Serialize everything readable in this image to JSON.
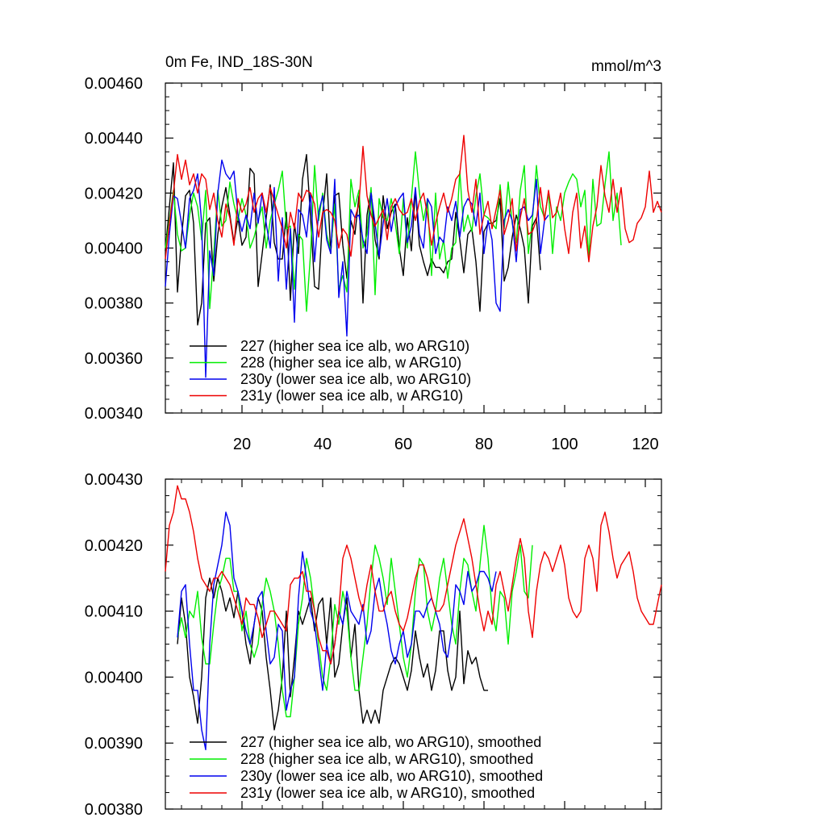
{
  "colors": {
    "s227": "#000000",
    "s228": "#00ee00",
    "s230": "#0000ee",
    "s231": "#ee0000"
  },
  "chart_data": [
    {
      "type": "line",
      "title": "0m Fe, IND_18S-30N",
      "units": "mmol/m^3",
      "ylim": [
        0.0034,
        0.0046
      ],
      "xlim": [
        1,
        124
      ],
      "yticks": [
        "0.00340",
        "0.00360",
        "0.00380",
        "0.00400",
        "0.00420",
        "0.00440",
        "0.00460"
      ],
      "yvals": [
        0.0034,
        0.0036,
        0.0038,
        0.004,
        0.0042,
        0.0044,
        0.0046
      ],
      "xticks": [
        20,
        40,
        60,
        80,
        100,
        120
      ],
      "legend_position": "bottom-left",
      "series": [
        {
          "name": "227 (higher sea ice alb, wo ARG10)",
          "color": "#000000",
          "x_start": 1,
          "values": [
            0.00399,
            0.00415,
            0.00431,
            0.00384,
            0.00404,
            0.00419,
            0.00421,
            0.00409,
            0.00372,
            0.0038,
            0.00409,
            0.00411,
            0.00388,
            0.00405,
            0.00415,
            0.00422,
            0.00412,
            0.00402,
            0.00411,
            0.00401,
            0.00404,
            0.00429,
            0.00427,
            0.00386,
            0.00398,
            0.00411,
            0.00423,
            0.00402,
            0.00396,
            0.00396,
            0.00413,
            0.00381,
            0.00409,
            0.00398,
            0.00425,
            0.00434,
            0.00411,
            0.00386,
            0.00385,
            0.00412,
            0.00427,
            0.00398,
            0.00419,
            0.0042,
            0.00401,
            0.00389,
            0.0041,
            0.00405,
            0.00419,
            0.0038,
            0.00412,
            0.00421,
            0.00403,
            0.00396,
            0.00419,
            0.00407,
            0.00413,
            0.00416,
            0.004,
            0.0039,
            0.00411,
            0.00399,
            0.00421,
            0.00401,
            0.00395,
            0.0039,
            0.00396,
            0.00393,
            0.00393,
            0.00391,
            0.00395,
            0.00396,
            0.00413,
            0.00403,
            0.00391,
            0.00405,
            0.00407,
            0.00395,
            0.00377,
            0.00406,
            0.00409,
            0.00409,
            0.0041,
            0.00418,
            0.00388,
            0.00393,
            0.00404,
            0.00412,
            0.00407,
            0.004,
            0.0038,
            0.00408,
            0.00411,
            0.00392
          ]
        },
        {
          "name": "228 (higher sea ice alb, w ARG10)",
          "color": "#00ee00",
          "x_start": 1,
          "values": [
            0.004,
            0.0041,
            0.00421,
            0.00405,
            0.00399,
            0.004,
            0.00412,
            0.0042,
            0.00415,
            0.00403,
            0.00421,
            0.00378,
            0.00398,
            0.00421,
            0.00408,
            0.0041,
            0.00424,
            0.00416,
            0.0041,
            0.00418,
            0.00412,
            0.004,
            0.00404,
            0.0041,
            0.00415,
            0.004,
            0.0041,
            0.00416,
            0.00421,
            0.00428,
            0.00407,
            0.00408,
            0.00385,
            0.00405,
            0.00403,
            0.00377,
            0.00398,
            0.0043,
            0.0041,
            0.0042,
            0.00405,
            0.00399,
            0.00416,
            0.00385,
            0.0039,
            0.00384,
            0.00425,
            0.00415,
            0.00421,
            0.004,
            0.00405,
            0.00422,
            0.00383,
            0.00418,
            0.00411,
            0.0041,
            0.00418,
            0.00409,
            0.00398,
            0.00418,
            0.004,
            0.00418,
            0.00435,
            0.0042,
            0.0041,
            0.00418,
            0.0039,
            0.0042,
            0.00396,
            0.00403,
            0.00389,
            0.004,
            0.00402,
            0.00428,
            0.00406,
            0.00412,
            0.00406,
            0.00419,
            0.00427,
            0.00412,
            0.00411,
            0.00409,
            0.00407,
            0.00423,
            0.00407,
            0.00424,
            0.00409,
            0.00402,
            0.00421,
            0.0043,
            0.00398,
            0.0041,
            0.0043,
            0.00415,
            0.00411,
            0.0042,
            0.00398,
            0.00415,
            0.0041,
            0.0042,
            0.00424,
            0.00427,
            0.00425,
            0.00415,
            0.00421,
            0.00396,
            0.00425,
            0.00408,
            0.00409,
            0.00423,
            0.00435,
            0.0041,
            0.0042,
            0.00401
          ]
        },
        {
          "name": "230y (lower sea ice alb, wo ARG10)",
          "color": "#0000ee",
          "x_start": 1,
          "values": [
            0.00386,
            0.00405,
            0.00419,
            0.00418,
            0.00409,
            0.004,
            0.00418,
            0.00421,
            0.00427,
            0.00409,
            0.00353,
            0.00399,
            0.0039,
            0.0042,
            0.00432,
            0.00427,
            0.00425,
            0.00428,
            0.00412,
            0.00406,
            0.00412,
            0.00407,
            0.0042,
            0.00409,
            0.0042,
            0.00409,
            0.004,
            0.00422,
            0.00388,
            0.00411,
            0.00385,
            0.00407,
            0.00373,
            0.00414,
            0.00412,
            0.00404,
            0.0042,
            0.00395,
            0.00413,
            0.00419,
            0.00403,
            0.00398,
            0.00425,
            0.00382,
            0.00395,
            0.00368,
            0.00414,
            0.00411,
            0.00412,
            0.00403,
            0.00398,
            0.0042,
            0.00409,
            0.00397,
            0.00409,
            0.00418,
            0.00406,
            0.00415,
            0.00418,
            0.0042,
            0.00402,
            0.00408,
            0.00422,
            0.00405,
            0.004,
            0.00418,
            0.00415,
            0.00398,
            0.00404,
            0.00402,
            0.00415,
            0.0041,
            0.00417,
            0.00404,
            0.00415,
            0.00418,
            0.00416,
            0.00408,
            0.0042,
            0.00398,
            0.0041,
            0.00403,
            0.0038,
            0.00377,
            0.0041,
            0.00414,
            0.0041,
            0.00395,
            0.00414,
            0.00415,
            0.0041,
            0.00412,
            0.00425,
            0.00398,
            0.0041,
            0.00412
          ]
        },
        {
          "name": "231y (lower sea ice alb, w ARG10)",
          "color": "#ee0000",
          "x_start": 1,
          "values": [
            0.00396,
            0.00409,
            0.0042,
            0.00434,
            0.00425,
            0.00432,
            0.00423,
            0.00427,
            0.0042,
            0.00427,
            0.00425,
            0.00414,
            0.0042,
            0.0041,
            0.00404,
            0.00416,
            0.00411,
            0.00401,
            0.00418,
            0.00413,
            0.00416,
            0.00422,
            0.00413,
            0.00418,
            0.0042,
            0.00413,
            0.00422,
            0.00417,
            0.00412,
            0.00407,
            0.004,
            0.00413,
            0.00407,
            0.0042,
            0.00417,
            0.00421,
            0.0042,
            0.00416,
            0.00404,
            0.00413,
            0.00414,
            0.00413,
            0.0041,
            0.004,
            0.00407,
            0.00405,
            0.00397,
            0.00411,
            0.00416,
            0.00437,
            0.00419,
            0.00412,
            0.00408,
            0.00411,
            0.00414,
            0.00403,
            0.00415,
            0.00418,
            0.00414,
            0.00412,
            0.00413,
            0.00418,
            0.0041,
            0.00417,
            0.0042,
            0.00412,
            0.00401,
            0.00409,
            0.00415,
            0.0042,
            0.00413,
            0.00418,
            0.00425,
            0.00427,
            0.00441,
            0.00421,
            0.00413,
            0.00425,
            0.00405,
            0.00412,
            0.00417,
            0.00407,
            0.00414,
            0.00421,
            0.00405,
            0.0041,
            0.00418,
            0.00399,
            0.00411,
            0.00418,
            0.00405,
            0.00406,
            0.0041,
            0.00422,
            0.0041,
            0.00421,
            0.00411,
            0.00413,
            0.0042,
            0.00407,
            0.00398,
            0.00413,
            0.0042,
            0.004,
            0.00408,
            0.00395,
            0.00408,
            0.00415,
            0.0043,
            0.00419,
            0.00413,
            0.00425,
            0.00413,
            0.00422,
            0.00407,
            0.00402,
            0.00403,
            0.00409,
            0.00411,
            0.00415,
            0.00428,
            0.00413,
            0.00417,
            0.00413
          ]
        }
      ]
    },
    {
      "type": "line",
      "ylim": [
        0.0038,
        0.0043
      ],
      "xlim": [
        1,
        124
      ],
      "yticks": [
        "0.00380",
        "0.00390",
        "0.00400",
        "0.00410",
        "0.00420",
        "0.00430"
      ],
      "yvals": [
        0.0038,
        0.0039,
        0.004,
        0.0041,
        0.0042,
        0.0043
      ],
      "legend_position": "bottom-left",
      "series": [
        {
          "name": "227 (higher sea ice alb, wo ARG10), smoothed",
          "color": "#000000",
          "x_start": 4,
          "values": [
            0.00405,
            0.00412,
            0.00408,
            0.004,
            0.00397,
            0.00393,
            0.004,
            0.00412,
            0.00415,
            0.00412,
            0.00415,
            0.00413,
            0.0041,
            0.00412,
            0.00409,
            0.00413,
            0.0041,
            0.00405,
            0.00402,
            0.00408,
            0.00412,
            0.0041,
            0.00403,
            0.00398,
            0.00392,
            0.00395,
            0.004,
            0.0041,
            0.00397,
            0.00403,
            0.0041,
            0.00408,
            0.0041,
            0.00412,
            0.00407,
            0.00411,
            0.00412,
            0.00405,
            0.00412,
            0.004,
            0.00402,
            0.00408,
            0.00412,
            0.00403,
            0.00408,
            0.00398,
            0.00393,
            0.00395,
            0.00393,
            0.00395,
            0.00393,
            0.00398,
            0.004,
            0.00402,
            0.00403,
            0.00402,
            0.004,
            0.00398,
            0.00401,
            0.00407,
            0.00403,
            0.004,
            0.00402,
            0.00398,
            0.00401,
            0.00407,
            0.00407,
            0.00401,
            0.00398,
            0.004,
            0.0041,
            0.00399,
            0.00404,
            0.00402,
            0.00403,
            0.004,
            0.00398,
            0.00398
          ]
        },
        {
          "name": "228 (higher sea ice alb, w ARG10), smoothed",
          "color": "#00ee00",
          "x_start": 4,
          "values": [
            0.00406,
            0.00409,
            0.00406,
            0.0041,
            0.00409,
            0.00413,
            0.00406,
            0.00402,
            0.00402,
            0.00408,
            0.00413,
            0.00415,
            0.00418,
            0.00418,
            0.00413,
            0.00413,
            0.00407,
            0.0041,
            0.00405,
            0.00403,
            0.00405,
            0.00411,
            0.00415,
            0.00413,
            0.0041,
            0.00405,
            0.00398,
            0.00394,
            0.00394,
            0.004,
            0.00408,
            0.00412,
            0.00418,
            0.00415,
            0.0041,
            0.00405,
            0.004,
            0.00398,
            0.00403,
            0.00411,
            0.00408,
            0.00413,
            0.0041,
            0.00403,
            0.00398,
            0.00398,
            0.00403,
            0.00408,
            0.00415,
            0.0042,
            0.00418,
            0.00415,
            0.00411,
            0.00418,
            0.00413,
            0.00408,
            0.00403,
            0.004,
            0.00405,
            0.00413,
            0.00418,
            0.00417,
            0.0041,
            0.00407,
            0.0041,
            0.00415,
            0.00418,
            0.00413,
            0.00408,
            0.00405,
            0.00413,
            0.00418,
            0.00417,
            0.00413,
            0.0041,
            0.00417,
            0.00423,
            0.00418,
            0.0041,
            0.00407,
            0.00413,
            0.00412,
            0.00405,
            0.00413,
            0.00416,
            0.0042,
            0.00413,
            0.00412,
            0.0042
          ]
        },
        {
          "name": "230y (lower sea ice alb, wo ARG10), smoothed",
          "color": "#0000ee",
          "x_start": 4,
          "values": [
            0.00406,
            0.00413,
            0.00414,
            0.00405,
            0.00398,
            0.00398,
            0.00392,
            0.00389,
            0.00405,
            0.00414,
            0.00417,
            0.0042,
            0.00425,
            0.00423,
            0.00415,
            0.00413,
            0.0041,
            0.00407,
            0.00405,
            0.00408,
            0.00412,
            0.00413,
            0.00407,
            0.00402,
            0.00403,
            0.00408,
            0.00407,
            0.00395,
            0.00398,
            0.004,
            0.00412,
            0.00419,
            0.00415,
            0.0041,
            0.00408,
            0.00403,
            0.00398,
            0.00405,
            0.00402,
            0.00405,
            0.0041,
            0.00408,
            0.00413,
            0.0041,
            0.00409,
            0.00408,
            0.00411,
            0.00405,
            0.00407,
            0.00413,
            0.00415,
            0.00411,
            0.00408,
            0.00404,
            0.00402,
            0.00405,
            0.00407,
            0.00403,
            0.00405,
            0.0041,
            0.0041,
            0.00409,
            0.00411,
            0.00412,
            0.0041,
            0.00408,
            0.00404,
            0.00403,
            0.00407,
            0.00414,
            0.00413,
            0.00411,
            0.00416,
            0.00413,
            0.00414,
            0.00416,
            0.00416,
            0.00415,
            0.00413,
            0.00416
          ]
        },
        {
          "name": "231y (lower sea ice alb, w ARG10), smoothed",
          "color": "#ee0000",
          "x_start": 1,
          "values": [
            0.00416,
            0.00423,
            0.00425,
            0.00429,
            0.00427,
            0.00427,
            0.00425,
            0.00422,
            0.00418,
            0.00415,
            0.00414,
            0.00413,
            0.00415,
            0.00415,
            0.00416,
            0.00415,
            0.00414,
            0.00412,
            0.0041,
            0.00408,
            0.00412,
            0.00411,
            0.00411,
            0.00409,
            0.00406,
            0.00408,
            0.0041,
            0.0041,
            0.00409,
            0.00408,
            0.00407,
            0.00414,
            0.00415,
            0.00415,
            0.00416,
            0.00413,
            0.00413,
            0.0041,
            0.00406,
            0.00404,
            0.00404,
            0.00402,
            0.00405,
            0.0041,
            0.00418,
            0.0042,
            0.00418,
            0.00415,
            0.00412,
            0.0041,
            0.00414,
            0.00417,
            0.00413,
            0.0041,
            0.0041,
            0.00412,
            0.00413,
            0.0041,
            0.00408,
            0.00407,
            0.00409,
            0.00412,
            0.00415,
            0.00417,
            0.00417,
            0.00415,
            0.00412,
            0.0041,
            0.0041,
            0.00411,
            0.00414,
            0.00417,
            0.0042,
            0.00422,
            0.00424,
            0.00421,
            0.00418,
            0.00414,
            0.0041,
            0.00407,
            0.0041,
            0.00408,
            0.00414,
            0.00416,
            0.00413,
            0.0041,
            0.00414,
            0.00418,
            0.00421,
            0.00418,
            0.0041,
            0.00406,
            0.00413,
            0.00417,
            0.00419,
            0.00418,
            0.00416,
            0.00418,
            0.0042,
            0.00417,
            0.00412,
            0.0041,
            0.00409,
            0.0041,
            0.00418,
            0.0042,
            0.00418,
            0.00413,
            0.00423,
            0.00425,
            0.00422,
            0.00418,
            0.00415,
            0.00417,
            0.00418,
            0.00419,
            0.00416,
            0.00412,
            0.0041,
            0.00409,
            0.00408,
            0.00408,
            0.00411,
            0.00414
          ]
        }
      ]
    }
  ]
}
